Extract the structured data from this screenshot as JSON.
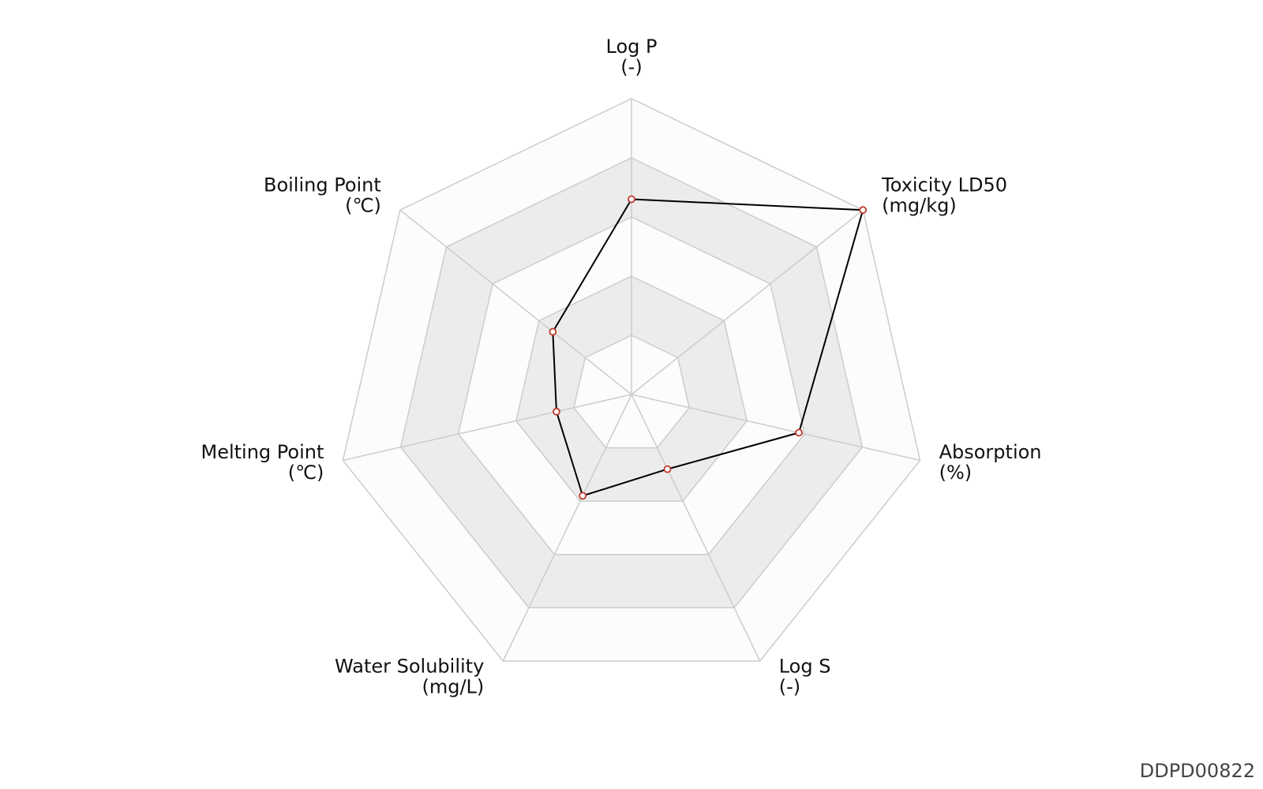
{
  "chart_data": {
    "type": "radar",
    "axes": [
      {
        "name": "Log P",
        "unit": "(-)"
      },
      {
        "name": "Toxicity LD50",
        "unit": "(mg/kg)"
      },
      {
        "name": "Absorption",
        "unit": "(%)"
      },
      {
        "name": "Log S",
        "unit": "(-)"
      },
      {
        "name": "Water Solubility",
        "unit": "(mg/L)"
      },
      {
        "name": "Melting Point",
        "unit": "(℃)"
      },
      {
        "name": "Boiling Point",
        "unit": "(℃)"
      }
    ],
    "values": [
      3.3,
      5.0,
      2.9,
      1.4,
      1.9,
      1.3,
      1.7
    ],
    "rlim": [
      0,
      5
    ],
    "rticks": [
      1,
      2,
      3,
      4,
      5
    ],
    "color": "#000000",
    "marker_color": "#c0392b",
    "band_colors": [
      "#fcfcfc",
      "#ececec"
    ],
    "grid_color": "#cccccc"
  },
  "footer": "DDPD00822"
}
